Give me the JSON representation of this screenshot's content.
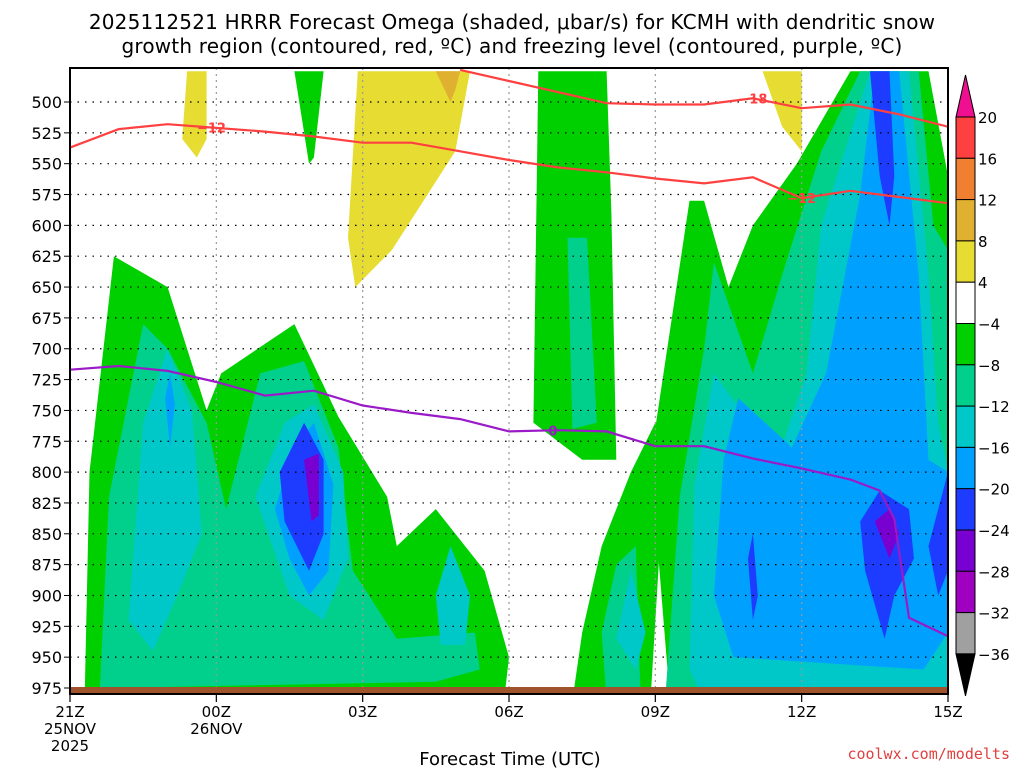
{
  "chart_data": {
    "type": "heatmap",
    "title": "2025112521 HRRR Forecast Omega (shaded, μbar/s) for KCMH with dendritic snow growth region (contoured, red, ºC) and freezing level (contoured, purple, ºC)",
    "title_lines": [
      "2025112521 HRRR Forecast Omega (shaded, μbar/s) for KCMH with dendritic snow",
      "growth region (contoured, red, ºC) and freezing level (contoured, purple, ºC)"
    ],
    "xlabel": "Forecast Time (UTC)",
    "ylabel": "",
    "credit": "coolwx.com/modelts",
    "x_hours_range": [
      0,
      18
    ],
    "y_pressure_range_hPa": [
      475,
      985
    ],
    "y_axis_inverted": true,
    "grid": true,
    "x_ticks": [
      {
        "hour": 0,
        "lines": [
          "21Z",
          "25NOV",
          "2025"
        ]
      },
      {
        "hour": 3,
        "lines": [
          "00Z",
          "26NOV"
        ]
      },
      {
        "hour": 6,
        "lines": [
          "03Z"
        ]
      },
      {
        "hour": 9,
        "lines": [
          "06Z"
        ]
      },
      {
        "hour": 12,
        "lines": [
          "09Z"
        ]
      },
      {
        "hour": 15,
        "lines": [
          "12Z"
        ]
      },
      {
        "hour": 18,
        "lines": [
          "15Z"
        ]
      }
    ],
    "y_ticks": [
      500,
      525,
      550,
      575,
      600,
      625,
      650,
      675,
      700,
      725,
      750,
      775,
      800,
      825,
      850,
      875,
      900,
      925,
      950,
      975
    ],
    "colorbar": {
      "levels": [
        -36,
        -32,
        -28,
        -24,
        -20,
        -16,
        -12,
        -8,
        -4,
        4,
        8,
        12,
        16,
        20
      ],
      "labels": [
        "20",
        "16",
        "12",
        "8",
        "4",
        "−4",
        "−8",
        "−12",
        "−16",
        "−20",
        "−24",
        "−28",
        "−32",
        "−36"
      ],
      "colors_top_to_bottom": [
        "#ee1090",
        "#ff4040",
        "#f08030",
        "#e0b030",
        "#e6dc32",
        "#ffffff",
        "#00d000",
        "#00d08c",
        "#00c8c8",
        "#00a0ff",
        "#1e3cff",
        "#7800d0",
        "#a000c0",
        "#a0a0a0",
        "#000000"
      ]
    },
    "series": [
      {
        "name": "dendritic snow growth -12C (red)",
        "color": "#ff4040",
        "label": "−12",
        "hours": [
          0,
          1,
          2,
          3,
          4,
          5,
          6,
          7,
          8,
          9,
          10,
          11,
          12,
          13,
          14,
          15,
          16,
          17,
          18
        ],
        "pressure": [
          537,
          522,
          518,
          521,
          524,
          528,
          533,
          533,
          540,
          547,
          553,
          557,
          562,
          566,
          561,
          578,
          572,
          577,
          582
        ]
      },
      {
        "name": "dendritic snow growth -18C (red)",
        "color": "#ff4040",
        "label": "−18",
        "hours": [
          8,
          9,
          10,
          11,
          12,
          13,
          14,
          15,
          16,
          17,
          18
        ],
        "pressure": [
          474,
          483,
          492,
          501,
          502,
          502,
          497,
          505,
          502,
          510,
          520
        ]
      },
      {
        "name": "freezing level 0C (purple)",
        "color": "#9a1ac8",
        "label": "0",
        "hours": [
          0,
          1,
          2,
          3,
          4,
          5,
          6,
          7,
          8,
          9,
          10,
          11,
          12,
          13,
          14,
          15,
          16,
          16.6,
          16.9,
          17.2,
          18
        ],
        "pressure": [
          717,
          714,
          718,
          727,
          738,
          734,
          746,
          752,
          757,
          767,
          766,
          767,
          779,
          779,
          789,
          797,
          806,
          815,
          838,
          918,
          933
        ]
      }
    ],
    "shaded_features": [
      {
        "level": "-28..-24",
        "hour": 4.9,
        "pressure": 800,
        "note": "strongest ascent core left"
      },
      {
        "level": "-28..-24",
        "hour": 16.8,
        "pressure": 845,
        "note": "strongest ascent core right"
      },
      {
        "level": "-24..-20",
        "hour": 16.8,
        "pressure": 540,
        "note": "upper column core"
      },
      {
        "level": "8..12",
        "hour": 7.7,
        "pressure": 485,
        "note": "weak descent max"
      }
    ]
  }
}
